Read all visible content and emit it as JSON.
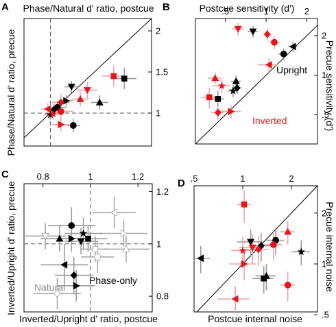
{
  "chart_data": [
    {
      "panel": "A",
      "type": "scatter",
      "title": "Phase/Natural d' ratio, postcue",
      "xlabel": "",
      "ylabel": "Phase/Natural d' ratio, precue",
      "x_ticks": [],
      "y_ticks": [
        "2",
        "1.5",
        "1"
      ],
      "xlim": [
        0.7,
        2.15
      ],
      "ylim": [
        0.6,
        2.15
      ],
      "reference_lines": [
        "unity diagonal",
        "dashed x = 1",
        "dashed y = 1"
      ],
      "annotations": [],
      "points": [
        {
          "x": 1.72,
          "y": 1.45,
          "xerr": 0.14,
          "yerr": 0.13,
          "marker": "square",
          "color": "red"
        },
        {
          "x": 1.84,
          "y": 1.42,
          "xerr": 0.14,
          "yerr": 0.13,
          "marker": "square",
          "color": "black"
        },
        {
          "x": 1.24,
          "y": 1.32,
          "xerr": 0.08,
          "yerr": 0.07,
          "marker": "triangle-down",
          "color": "black"
        },
        {
          "x": 1.42,
          "y": 1.28,
          "xerr": 0.12,
          "yerr": 0.1,
          "marker": "triangle-down",
          "color": "red"
        },
        {
          "x": 1.56,
          "y": 1.13,
          "xerr": 0.1,
          "yerr": 0.09,
          "marker": "triangle-up",
          "color": "black"
        },
        {
          "x": 1.34,
          "y": 1.17,
          "xerr": 0.1,
          "yerr": 0.09,
          "marker": "triangle-up",
          "color": "red"
        },
        {
          "x": 1.18,
          "y": 1.15,
          "xerr": 0.08,
          "yerr": 0.07,
          "marker": "triangle-right",
          "color": "black"
        },
        {
          "x": 1.12,
          "y": 1.13,
          "xerr": 0.1,
          "yerr": 0.1,
          "marker": "diamond",
          "color": "red"
        },
        {
          "x": 1.08,
          "y": 1.07,
          "xerr": 0.1,
          "yerr": 0.08,
          "marker": "circle",
          "color": "black"
        },
        {
          "x": 1.12,
          "y": 1.02,
          "xerr": 0.14,
          "yerr": 0.12,
          "marker": "circle",
          "color": "red"
        },
        {
          "x": 0.97,
          "y": 1.05,
          "xerr": 0.08,
          "yerr": 0.07,
          "marker": "triangle-left",
          "color": "red"
        },
        {
          "x": 1.04,
          "y": 1.04,
          "xerr": 0.08,
          "yerr": 0.07,
          "marker": "diamond",
          "color": "black"
        },
        {
          "x": 1.0,
          "y": 0.98,
          "xerr": 0.07,
          "yerr": 0.06,
          "marker": "star",
          "color": "black"
        },
        {
          "x": 1.03,
          "y": 0.99,
          "xerr": 0.07,
          "yerr": 0.06,
          "marker": "star",
          "color": "red"
        },
        {
          "x": 1.26,
          "y": 0.85,
          "xerr": 0.08,
          "yerr": 0.08,
          "marker": "circle",
          "color": "black"
        },
        {
          "x": 1.12,
          "y": 0.86,
          "xerr": 0.1,
          "yerr": 0.08,
          "marker": "triangle-right",
          "color": "red"
        }
      ]
    },
    {
      "panel": "B",
      "type": "scatter",
      "title": "Postcue sensitivity (d')",
      "xlabel": "",
      "ylabel": "Precue sensitivity (d')",
      "scale": "log",
      "x_ticks": [
        ".5",
        "1",
        "2"
      ],
      "y_ticks": [
        "2",
        "1",
        ".5"
      ],
      "xlim": [
        0.3,
        2.4
      ],
      "ylim": [
        0.3,
        2.7
      ],
      "reference_lines": [
        "unity diagonal"
      ],
      "annotations": [
        {
          "text": "Upright",
          "color": "black"
        },
        {
          "text": "Inverted",
          "color": "red"
        }
      ],
      "points": [
        {
          "x": 0.62,
          "y": 2.25,
          "xerr": 0.06,
          "yerr": 0.25,
          "marker": "triangle-down",
          "color": "red"
        },
        {
          "x": 0.8,
          "y": 2.15,
          "xerr": 0.07,
          "yerr": 0.22,
          "marker": "triangle-down",
          "color": "black"
        },
        {
          "x": 1.02,
          "y": 2.05,
          "xerr": 0.07,
          "yerr": 0.22,
          "marker": "diamond",
          "color": "red"
        },
        {
          "x": 1.15,
          "y": 1.78,
          "xerr": 0.1,
          "yerr": 0.2,
          "marker": "circle",
          "color": "red"
        },
        {
          "x": 1.58,
          "y": 1.65,
          "xerr": 0.12,
          "yerr": 0.15,
          "marker": "triangle-left",
          "color": "black"
        },
        {
          "x": 1.35,
          "y": 1.45,
          "xerr": 0.12,
          "yerr": 0.15,
          "marker": "circle",
          "color": "black"
        },
        {
          "x": 1.05,
          "y": 1.2,
          "xerr": 0.18,
          "yerr": 0.15,
          "marker": "triangle-left",
          "color": "red"
        },
        {
          "x": 0.42,
          "y": 0.95,
          "xerr": 0.05,
          "yerr": 0.1,
          "marker": "triangle-up",
          "color": "red"
        },
        {
          "x": 0.47,
          "y": 0.83,
          "xerr": 0.07,
          "yerr": 0.1,
          "marker": "star",
          "color": "red"
        },
        {
          "x": 0.6,
          "y": 0.9,
          "xerr": 0.05,
          "yerr": 0.1,
          "marker": "triangle-up",
          "color": "black"
        },
        {
          "x": 0.61,
          "y": 0.8,
          "xerr": 0.05,
          "yerr": 0.08,
          "marker": "diamond",
          "color": "black"
        },
        {
          "x": 0.57,
          "y": 0.76,
          "xerr": 0.05,
          "yerr": 0.08,
          "marker": "star",
          "color": "black"
        },
        {
          "x": 0.38,
          "y": 0.68,
          "xerr": 0.05,
          "yerr": 0.12,
          "marker": "square",
          "color": "red"
        },
        {
          "x": 0.44,
          "y": 0.66,
          "xerr": 0.05,
          "yerr": 0.1,
          "marker": "square",
          "color": "black"
        },
        {
          "x": 0.44,
          "y": 0.52,
          "xerr": 0.05,
          "yerr": 0.06,
          "marker": "diamond",
          "color": "red"
        },
        {
          "x": 0.55,
          "y": 0.53,
          "xerr": 0.1,
          "yerr": 0.06,
          "marker": "triangle-right",
          "color": "red"
        }
      ]
    },
    {
      "panel": "C",
      "type": "scatter",
      "title": "",
      "xlabel": "Inverted/Upright d' ratio, postcue",
      "ylabel": "Inverted/Upright d' ratio, precue",
      "x_ticks": [
        "0.8",
        "1",
        "1.2"
      ],
      "y_ticks": [
        "1.2",
        "1",
        "0.8"
      ],
      "xlim": [
        0.72,
        1.26
      ],
      "ylim": [
        0.74,
        1.23
      ],
      "reference_lines": [
        "dashed x = 1",
        "dashed y = 1"
      ],
      "annotations": [
        {
          "text": "Natural",
          "color": "gray"
        },
        {
          "text": "Phase-only",
          "color": "black"
        }
      ],
      "points": [
        {
          "x": 1.1,
          "y": 1.12,
          "xerr": 0.09,
          "yerr": 0.06,
          "marker": "triangle-left",
          "color": "gray",
          "filled": false
        },
        {
          "x": 0.81,
          "y": 1.03,
          "xerr": 0.09,
          "yerr": 0.05,
          "marker": "triangle-down",
          "color": "gray",
          "filled": false
        },
        {
          "x": 1.14,
          "y": 1.04,
          "xerr": 0.1,
          "yerr": 0.05,
          "marker": "triangle-right",
          "color": "gray",
          "filled": false
        },
        {
          "x": 1.15,
          "y": 0.98,
          "xerr": 0.1,
          "yerr": 0.05,
          "marker": "triangle-up",
          "color": "gray",
          "filled": false
        },
        {
          "x": 1.02,
          "y": 0.98,
          "xerr": 0.06,
          "yerr": 0.05,
          "marker": "square",
          "color": "gray",
          "filled": false
        },
        {
          "x": 1.03,
          "y": 0.95,
          "xerr": 0.07,
          "yerr": 0.06,
          "marker": "circle",
          "color": "gray",
          "filled": false
        },
        {
          "x": 0.86,
          "y": 0.81,
          "xerr": 0.1,
          "yerr": 0.06,
          "marker": "diamond",
          "color": "gray",
          "filled": false
        },
        {
          "x": 0.92,
          "y": 1.07,
          "xerr": 0.1,
          "yerr": 0.07,
          "marker": "circle",
          "color": "black"
        },
        {
          "x": 0.97,
          "y": 1.04,
          "xerr": 0.08,
          "yerr": 0.06,
          "marker": "star",
          "color": "black"
        },
        {
          "x": 0.87,
          "y": 1.02,
          "xerr": 0.08,
          "yerr": 0.05,
          "marker": "triangle-up",
          "color": "black"
        },
        {
          "x": 0.92,
          "y": 1.02,
          "xerr": 0.08,
          "yerr": 0.05,
          "marker": "triangle-right",
          "color": "black"
        },
        {
          "x": 0.96,
          "y": 1.01,
          "xerr": 0.07,
          "yerr": 0.05,
          "marker": "triangle-down",
          "color": "black"
        },
        {
          "x": 0.99,
          "y": 1.02,
          "xerr": 0.08,
          "yerr": 0.05,
          "marker": "square",
          "color": "black"
        },
        {
          "x": 0.89,
          "y": 0.92,
          "xerr": 0.1,
          "yerr": 0.08,
          "marker": "triangle-left",
          "color": "black"
        },
        {
          "x": 0.93,
          "y": 0.88,
          "xerr": 0.08,
          "yerr": 0.07,
          "marker": "diamond",
          "color": "black"
        },
        {
          "x": 0.94,
          "y": 0.84,
          "xerr": 0.08,
          "yerr": 0.06,
          "marker": "triangle-right",
          "color": "black"
        }
      ]
    },
    {
      "panel": "D",
      "type": "scatter",
      "title": "",
      "xlabel": "Postcue internal noise",
      "ylabel": "Precue internal noise",
      "scale": "log",
      "x_ticks": [
        ".5",
        "1",
        "2"
      ],
      "y_ticks": [
        "2",
        "1",
        ".5"
      ],
      "xlim": [
        0.5,
        2.9
      ],
      "ylim": [
        0.52,
        2.9
      ],
      "reference_lines": [
        "unity diagonal"
      ],
      "annotations": [],
      "points": [
        {
          "x": 1.02,
          "y": 2.25,
          "xerr": 0.1,
          "yerr": 0.5,
          "marker": "square",
          "color": "red"
        },
        {
          "x": 0.55,
          "y": 1.08,
          "xerr": 0.08,
          "yerr": 0.2,
          "marker": "triangle-left",
          "color": "black"
        },
        {
          "x": 1.12,
          "y": 1.35,
          "xerr": 0.2,
          "yerr": 0.25,
          "marker": "triangle-down",
          "color": "black"
        },
        {
          "x": 1.15,
          "y": 1.25,
          "xerr": 0.2,
          "yerr": 0.25,
          "marker": "triangle-down",
          "color": "red"
        },
        {
          "x": 1.9,
          "y": 1.55,
          "xerr": 0.2,
          "yerr": 0.25,
          "marker": "triangle-up",
          "color": "red"
        },
        {
          "x": 1.6,
          "y": 1.38,
          "xerr": 0.2,
          "yerr": 0.25,
          "marker": "circle",
          "color": "black"
        },
        {
          "x": 1.55,
          "y": 1.3,
          "xerr": 0.2,
          "yerr": 0.25,
          "marker": "circle",
          "color": "red"
        },
        {
          "x": 1.3,
          "y": 1.28,
          "xerr": 0.2,
          "yerr": 0.25,
          "marker": "diamond",
          "color": "black"
        },
        {
          "x": 1.25,
          "y": 1.22,
          "xerr": 0.2,
          "yerr": 0.25,
          "marker": "diamond",
          "color": "red"
        },
        {
          "x": 1.0,
          "y": 1.2,
          "xerr": 0.15,
          "yerr": 0.25,
          "marker": "star",
          "color": "red"
        },
        {
          "x": 2.3,
          "y": 1.18,
          "xerr": 0.3,
          "yerr": 0.2,
          "marker": "star",
          "color": "black"
        },
        {
          "x": 1.02,
          "y": 1.0,
          "xerr": 0.2,
          "yerr": 0.2,
          "marker": "triangle-right",
          "color": "red"
        },
        {
          "x": 1.4,
          "y": 0.85,
          "xerr": 0.2,
          "yerr": 0.15,
          "marker": "triangle-up",
          "color": "black"
        },
        {
          "x": 1.35,
          "y": 0.82,
          "xerr": 0.2,
          "yerr": 0.15,
          "marker": "square",
          "color": "black"
        },
        {
          "x": 1.9,
          "y": 0.75,
          "xerr": 0.2,
          "yerr": 0.15,
          "marker": "circle",
          "color": "red"
        },
        {
          "x": 0.9,
          "y": 0.62,
          "xerr": 0.2,
          "yerr": 0.12,
          "marker": "triangle-left",
          "color": "red"
        }
      ]
    }
  ]
}
